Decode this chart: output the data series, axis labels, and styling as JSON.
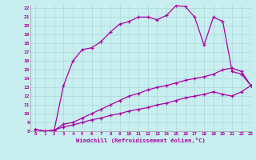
{
  "xlabel": "Windchill (Refroidissement éolien,°C)",
  "bg_color": "#c8eef0",
  "line_color": "#aa00aa",
  "xlim": [
    -0.5,
    23
  ],
  "ylim": [
    8,
    22.4
  ],
  "yticks": [
    8,
    9,
    10,
    11,
    12,
    13,
    14,
    15,
    16,
    17,
    18,
    19,
    20,
    21,
    22
  ],
  "xticks": [
    0,
    1,
    2,
    3,
    4,
    5,
    6,
    7,
    8,
    9,
    10,
    11,
    12,
    13,
    14,
    15,
    16,
    17,
    18,
    19,
    20,
    21,
    22,
    23
  ],
  "line1_x": [
    0,
    1,
    2,
    3,
    4,
    5,
    6,
    7,
    8,
    9,
    10,
    11,
    12,
    13,
    14,
    15,
    16,
    17,
    18,
    19,
    20,
    21,
    22,
    23
  ],
  "line1_y": [
    8.2,
    8.0,
    8.1,
    13.2,
    16.0,
    17.3,
    17.5,
    18.2,
    19.3,
    20.2,
    20.5,
    21.0,
    21.0,
    20.7,
    21.2,
    22.3,
    22.2,
    21.0,
    17.8,
    21.0,
    20.5,
    14.8,
    14.5,
    13.2
  ],
  "line2_x": [
    0,
    1,
    2,
    3,
    4,
    5,
    6,
    7,
    8,
    9,
    10,
    11,
    12,
    13,
    14,
    15,
    16,
    17,
    18,
    19,
    20,
    21,
    22,
    23
  ],
  "line2_y": [
    8.2,
    8.0,
    8.1,
    8.8,
    9.0,
    9.5,
    10.0,
    10.5,
    11.0,
    11.5,
    12.0,
    12.3,
    12.7,
    13.0,
    13.2,
    13.5,
    13.8,
    14.0,
    14.2,
    14.5,
    15.0,
    15.2,
    14.8,
    13.2
  ],
  "line3_x": [
    0,
    1,
    2,
    3,
    4,
    5,
    6,
    7,
    8,
    9,
    10,
    11,
    12,
    13,
    14,
    15,
    16,
    17,
    18,
    19,
    20,
    21,
    22,
    23
  ],
  "line3_y": [
    8.2,
    8.0,
    8.1,
    8.5,
    8.7,
    9.0,
    9.3,
    9.5,
    9.8,
    10.0,
    10.3,
    10.5,
    10.7,
    11.0,
    11.2,
    11.5,
    11.8,
    12.0,
    12.2,
    12.5,
    12.2,
    12.0,
    12.5,
    13.2
  ],
  "grid_color": "#aad8da",
  "spine_color": "#999999"
}
